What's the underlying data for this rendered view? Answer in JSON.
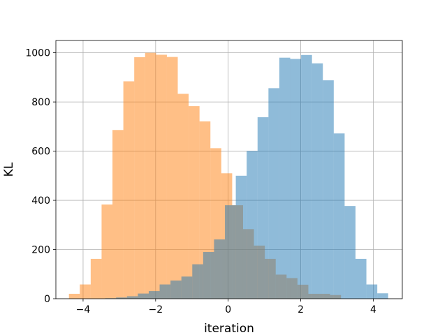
{
  "chart_data": {
    "type": "bar",
    "title": "",
    "xlabel": "iteration",
    "ylabel": "KL",
    "xlim": [
      -4.75,
      4.8
    ],
    "ylim": [
      0,
      1050
    ],
    "xticks": [
      -4,
      -2,
      0,
      2,
      4
    ],
    "xtick_labels": [
      "−4",
      "−2",
      "0",
      "2",
      "4"
    ],
    "yticks": [
      0,
      200,
      400,
      600,
      800,
      1000
    ],
    "ytick_labels": [
      "0",
      "200",
      "400",
      "600",
      "800",
      "1000"
    ],
    "grid": true,
    "legend": "none",
    "series": [
      {
        "color": "#ff7f0e",
        "alpha": 0.5,
        "bin_edges": [
          -4.39,
          -4.09,
          -3.79,
          -3.49,
          -3.19,
          -2.89,
          -2.59,
          -2.29,
          -1.99,
          -1.69,
          -1.39,
          -1.09,
          -0.79,
          -0.49,
          -0.19,
          0.11,
          0.41,
          0.71,
          1.01,
          1.31,
          1.61,
          1.91,
          2.21,
          2.51,
          2.81,
          3.11
        ],
        "values": [
          20,
          58,
          162,
          383,
          686,
          884,
          982,
          1000,
          992,
          983,
          833,
          783,
          721,
          612,
          510,
          380,
          283,
          216,
          162,
          98,
          84,
          57,
          20,
          20,
          15
        ]
      },
      {
        "color": "#1f77b4",
        "alpha": 0.5,
        "bin_edges": [
          -3.39,
          -3.09,
          -2.79,
          -2.49,
          -2.19,
          -1.89,
          -1.59,
          -1.29,
          -0.99,
          -0.69,
          -0.39,
          -0.09,
          0.21,
          0.51,
          0.81,
          1.11,
          1.41,
          1.71,
          2.01,
          2.31,
          2.61,
          2.91,
          3.21,
          3.51,
          3.81,
          4.11,
          4.41
        ],
        "values": [
          2,
          5,
          10,
          21,
          31,
          58,
          74,
          90,
          140,
          190,
          241,
          380,
          500,
          601,
          738,
          856,
          980,
          975,
          991,
          957,
          888,
          672,
          377,
          162,
          58,
          22
        ]
      }
    ]
  }
}
